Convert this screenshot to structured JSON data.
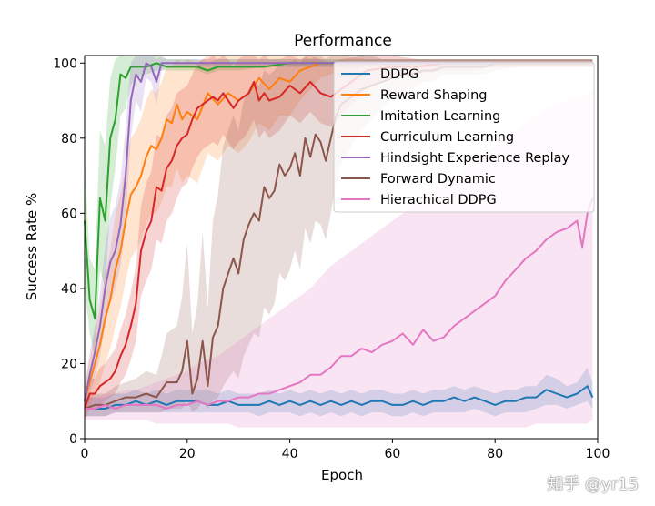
{
  "watermark": "知乎 @yr15",
  "chart_data": {
    "type": "line",
    "title": "Performance",
    "xlabel": "Epoch",
    "ylabel": "Success Rate %",
    "xlim": [
      0,
      100
    ],
    "ylim": [
      0,
      102
    ],
    "xticks": [
      0,
      20,
      40,
      60,
      80,
      100
    ],
    "yticks": [
      0,
      20,
      40,
      60,
      80,
      100
    ],
    "grid": false,
    "legend_position": "top-right",
    "series": [
      {
        "name": "DDPG",
        "color": "#1f77b4",
        "x": [
          0,
          2,
          4,
          6,
          8,
          10,
          12,
          14,
          16,
          18,
          20,
          22,
          24,
          26,
          28,
          30,
          32,
          34,
          36,
          38,
          40,
          42,
          44,
          46,
          48,
          50,
          52,
          54,
          56,
          58,
          60,
          62,
          64,
          66,
          68,
          70,
          72,
          74,
          76,
          78,
          80,
          82,
          84,
          86,
          88,
          90,
          92,
          94,
          96,
          98,
          99
        ],
        "y": [
          8,
          8,
          8,
          9,
          9,
          10,
          9,
          10,
          9,
          10,
          10,
          10,
          9,
          9,
          10,
          9,
          9,
          9,
          10,
          9,
          10,
          9,
          10,
          9,
          10,
          9,
          10,
          9,
          10,
          10,
          9,
          9,
          10,
          9,
          10,
          10,
          11,
          10,
          11,
          10,
          9,
          10,
          10,
          11,
          11,
          13,
          12,
          11,
          12,
          14,
          11
        ],
        "band_low": [
          6,
          6,
          6,
          7,
          7,
          7,
          7,
          7,
          7,
          7,
          7,
          7,
          7,
          7,
          7,
          7,
          7,
          6,
          7,
          7,
          7,
          6,
          7,
          6,
          7,
          6,
          7,
          6,
          7,
          7,
          6,
          6,
          7,
          6,
          7,
          7,
          7,
          7,
          8,
          7,
          6,
          7,
          7,
          7,
          8,
          9,
          9,
          8,
          9,
          10,
          8
        ],
        "band_high": [
          11,
          11,
          11,
          12,
          12,
          13,
          12,
          13,
          12,
          13,
          13,
          13,
          13,
          12,
          13,
          12,
          12,
          12,
          13,
          12,
          13,
          12,
          13,
          12,
          13,
          12,
          13,
          12,
          13,
          13,
          12,
          12,
          13,
          12,
          13,
          13,
          14,
          13,
          14,
          13,
          12,
          13,
          13,
          14,
          14,
          17,
          16,
          14,
          15,
          19,
          15
        ]
      },
      {
        "name": "Reward Shaping",
        "color": "#ff7f0e",
        "x": [
          0,
          1,
          2,
          3,
          4,
          5,
          6,
          7,
          8,
          9,
          10,
          11,
          12,
          13,
          14,
          15,
          16,
          17,
          18,
          19,
          20,
          22,
          24,
          26,
          28,
          30,
          32,
          34,
          36,
          38,
          40,
          42,
          44,
          46,
          48,
          50,
          55,
          60,
          65,
          70,
          75,
          80,
          85,
          90,
          95,
          99
        ],
        "y": [
          10,
          15,
          20,
          25,
          32,
          37,
          45,
          50,
          58,
          65,
          67,
          70,
          75,
          78,
          77,
          80,
          85,
          84,
          89,
          85,
          87,
          85,
          92,
          89,
          92,
          90,
          92,
          96,
          93,
          96,
          95,
          98,
          99,
          100,
          100,
          100,
          100,
          100,
          100,
          100,
          100,
          100,
          100,
          100,
          100,
          100
        ],
        "band_low": [
          6,
          9,
          12,
          15,
          20,
          24,
          30,
          35,
          42,
          48,
          50,
          53,
          57,
          60,
          60,
          63,
          67,
          67,
          72,
          68,
          70,
          68,
          76,
          74,
          78,
          76,
          79,
          84,
          82,
          86,
          86,
          90,
          93,
          96,
          97,
          98,
          99,
          99,
          99,
          99,
          99,
          99,
          99,
          99,
          99,
          99
        ],
        "band_high": [
          14,
          21,
          28,
          35,
          44,
          50,
          60,
          65,
          73,
          80,
          82,
          85,
          90,
          93,
          92,
          95,
          99,
          99,
          101,
          100,
          101,
          100,
          102,
          102,
          102,
          102,
          102,
          102,
          102,
          102,
          102,
          102,
          102,
          102,
          102,
          102,
          101,
          101,
          101,
          101,
          101,
          101,
          101,
          101,
          101,
          101
        ]
      },
      {
        "name": "Imitation Learning",
        "color": "#2ca02c",
        "x": [
          0,
          1,
          2,
          3,
          4,
          5,
          6,
          7,
          8,
          9,
          10,
          12,
          14,
          16,
          18,
          20,
          22,
          24,
          26,
          28,
          30,
          35,
          40,
          45,
          50,
          60,
          70,
          80,
          90,
          99
        ],
        "y": [
          58,
          37,
          32,
          64,
          58,
          80,
          85,
          97,
          96,
          99,
          99,
          99,
          100,
          99,
          99,
          99,
          99,
          98,
          99,
          99,
          99,
          99,
          100,
          100,
          100,
          100,
          100,
          100,
          100,
          100
        ],
        "band_low": [
          40,
          28,
          22,
          45,
          40,
          62,
          72,
          86,
          88,
          94,
          96,
          97,
          98,
          98,
          98,
          98,
          98,
          97,
          98,
          98,
          98,
          99,
          99,
          99,
          99,
          99,
          99,
          99,
          99,
          99
        ],
        "band_high": [
          75,
          48,
          45,
          82,
          78,
          96,
          101,
          102,
          102,
          102,
          102,
          102,
          102,
          101,
          101,
          101,
          101,
          100,
          101,
          101,
          101,
          101,
          101,
          101,
          101,
          101,
          101,
          101,
          101,
          101
        ]
      },
      {
        "name": "Curriculum Learning",
        "color": "#d62728",
        "x": [
          0,
          1,
          2,
          3,
          4,
          5,
          6,
          7,
          8,
          9,
          10,
          11,
          12,
          13,
          14,
          15,
          16,
          17,
          18,
          19,
          20,
          21,
          22,
          23,
          24,
          25,
          26,
          27,
          28,
          29,
          30,
          31,
          32,
          33,
          34,
          35,
          36,
          38,
          40,
          42,
          44,
          46,
          48,
          50,
          55,
          60,
          65,
          70,
          75,
          80,
          85,
          90,
          95,
          99
        ],
        "y": [
          8,
          12,
          12,
          14,
          15,
          16,
          18,
          22,
          25,
          30,
          36,
          50,
          55,
          58,
          67,
          66,
          72,
          74,
          78,
          80,
          81,
          85,
          88,
          89,
          90,
          91,
          90,
          92,
          90,
          88,
          90,
          91,
          92,
          95,
          90,
          92,
          90,
          91,
          94,
          92,
          95,
          92,
          91,
          93,
          98,
          99,
          99,
          100,
          100,
          100,
          100,
          100,
          100,
          100
        ],
        "band_low": [
          5,
          8,
          8,
          9,
          10,
          11,
          12,
          15,
          17,
          21,
          26,
          38,
          42,
          45,
          53,
          52,
          58,
          60,
          64,
          67,
          68,
          72,
          75,
          77,
          78,
          79,
          78,
          81,
          79,
          77,
          79,
          80,
          82,
          85,
          80,
          82,
          80,
          82,
          86,
          84,
          87,
          84,
          83,
          86,
          93,
          96,
          97,
          98,
          98,
          99,
          99,
          99,
          99,
          99
        ],
        "band_high": [
          11,
          16,
          16,
          19,
          20,
          22,
          24,
          29,
          33,
          39,
          46,
          62,
          68,
          71,
          81,
          80,
          86,
          88,
          92,
          93,
          94,
          97,
          100,
          101,
          101,
          102,
          101,
          102,
          101,
          99,
          101,
          102,
          102,
          102,
          101,
          102,
          101,
          101,
          102,
          101,
          102,
          101,
          100,
          101,
          102,
          102,
          101,
          101,
          101,
          101,
          101,
          101,
          101,
          101
        ]
      },
      {
        "name": "Hindsight Experience Replay",
        "color": "#9467bd",
        "x": [
          0,
          1,
          2,
          3,
          4,
          5,
          6,
          7,
          8,
          9,
          10,
          11,
          12,
          13,
          14,
          15,
          16,
          17,
          18,
          20,
          25,
          30,
          40,
          50,
          60,
          70,
          80,
          90,
          99
        ],
        "y": [
          10,
          17,
          23,
          30,
          40,
          47,
          50,
          57,
          70,
          90,
          97,
          95,
          100,
          99,
          95,
          100,
          100,
          100,
          100,
          100,
          100,
          100,
          100,
          100,
          100,
          100,
          100,
          100,
          100
        ],
        "band_low": [
          7,
          12,
          16,
          22,
          30,
          36,
          40,
          46,
          58,
          80,
          90,
          87,
          96,
          95,
          89,
          98,
          99,
          99,
          99,
          99,
          99,
          99,
          99,
          99,
          99,
          99,
          99,
          99,
          99
        ],
        "band_high": [
          14,
          23,
          30,
          39,
          51,
          59,
          62,
          69,
          83,
          100,
          102,
          102,
          102,
          102,
          101,
          102,
          101,
          101,
          101,
          101,
          101,
          101,
          101,
          101,
          101,
          101,
          101,
          101,
          101
        ]
      },
      {
        "name": "Forward Dynamic",
        "color": "#8c564b",
        "x": [
          0,
          2,
          4,
          6,
          8,
          10,
          12,
          14,
          15,
          16,
          18,
          19,
          20,
          21,
          22,
          23,
          24,
          25,
          26,
          27,
          28,
          29,
          30,
          31,
          32,
          33,
          34,
          35,
          36,
          37,
          38,
          39,
          40,
          41,
          42,
          43,
          44,
          45,
          46,
          47,
          48,
          49,
          50,
          52,
          54,
          56,
          58,
          60,
          62,
          64,
          66,
          68,
          70,
          72,
          74,
          76,
          78,
          80,
          85,
          90,
          95,
          99
        ],
        "y": [
          8,
          9,
          9,
          10,
          11,
          11,
          12,
          11,
          13,
          15,
          15,
          18,
          26,
          12,
          16,
          26,
          14,
          27,
          30,
          40,
          44,
          48,
          44,
          53,
          57,
          60,
          58,
          67,
          64,
          66,
          73,
          70,
          72,
          76,
          70,
          80,
          75,
          81,
          79,
          74,
          80,
          86,
          89,
          91,
          93,
          94,
          95,
          96,
          97,
          97,
          98,
          98,
          99,
          99,
          99,
          99,
          99,
          100,
          100,
          100,
          100,
          100
        ],
        "band_low": [
          6,
          6,
          6,
          7,
          7,
          7,
          7,
          7,
          7,
          8,
          8,
          8,
          10,
          7,
          8,
          10,
          8,
          10,
          11,
          14,
          16,
          18,
          16,
          22,
          25,
          28,
          27,
          35,
          33,
          36,
          44,
          42,
          45,
          50,
          45,
          56,
          52,
          58,
          57,
          53,
          60,
          68,
          73,
          78,
          82,
          85,
          88,
          90,
          92,
          93,
          95,
          95,
          97,
          97,
          97,
          97,
          97,
          98,
          99,
          99,
          99,
          99
        ],
        "band_high": [
          11,
          12,
          12,
          14,
          15,
          16,
          18,
          17,
          22,
          28,
          30,
          38,
          52,
          28,
          36,
          55,
          35,
          58,
          65,
          78,
          82,
          86,
          82,
          90,
          93,
          95,
          94,
          98,
          97,
          98,
          100,
          99,
          100,
          101,
          100,
          102,
          101,
          102,
          102,
          101,
          102,
          102,
          102,
          102,
          102,
          102,
          101,
          101,
          101,
          101,
          101,
          101,
          101,
          101,
          101,
          101,
          101,
          101,
          101,
          101,
          101,
          101
        ]
      },
      {
        "name": "Hierachical DDPG",
        "color": "#e377c2",
        "x": [
          0,
          2,
          4,
          6,
          8,
          10,
          12,
          14,
          16,
          18,
          20,
          22,
          24,
          26,
          28,
          30,
          32,
          34,
          36,
          38,
          40,
          42,
          44,
          46,
          48,
          50,
          52,
          54,
          56,
          58,
          60,
          62,
          64,
          66,
          68,
          70,
          72,
          74,
          76,
          78,
          80,
          82,
          84,
          86,
          88,
          90,
          92,
          94,
          96,
          97,
          98,
          99
        ],
        "y": [
          8,
          8,
          9,
          8,
          9,
          9,
          9,
          9,
          8,
          9,
          9,
          10,
          9,
          10,
          10,
          11,
          11,
          12,
          12,
          13,
          14,
          15,
          17,
          17,
          19,
          22,
          22,
          24,
          23,
          25,
          26,
          28,
          25,
          29,
          26,
          27,
          30,
          32,
          34,
          36,
          38,
          42,
          45,
          48,
          50,
          53,
          55,
          56,
          58,
          51,
          60,
          64
        ],
        "band_low": [
          5,
          5,
          5,
          5,
          5,
          5,
          5,
          4,
          4,
          4,
          4,
          4,
          4,
          4,
          4,
          3,
          3,
          3,
          3,
          3,
          3,
          3,
          3,
          3,
          3,
          3,
          3,
          3,
          3,
          3,
          3,
          3,
          3,
          3,
          3,
          3,
          3,
          3,
          3,
          3,
          3,
          3,
          3,
          3,
          4,
          4,
          4,
          4,
          4,
          4,
          4,
          5
        ],
        "band_high": [
          11,
          11,
          12,
          12,
          13,
          13,
          14,
          15,
          16,
          17,
          18,
          20,
          21,
          22,
          24,
          26,
          28,
          30,
          32,
          34,
          36,
          38,
          40,
          43,
          46,
          48,
          50,
          52,
          54,
          56,
          58,
          60,
          62,
          64,
          66,
          68,
          70,
          72,
          74,
          76,
          78,
          80,
          82,
          84,
          86,
          88,
          89,
          90,
          91,
          91,
          92,
          93
        ]
      }
    ]
  }
}
